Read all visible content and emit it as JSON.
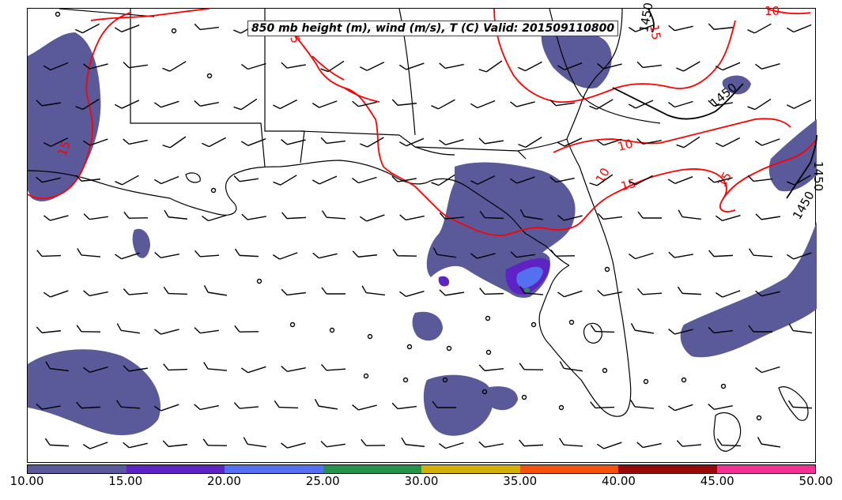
{
  "title": "850 mb height (m), wind (m/s), T (C) Valid: 201509110800",
  "colorbar": {
    "ticks": [
      "10.00",
      "15.00",
      "20.00",
      "25.00",
      "30.00",
      "35.00",
      "40.00",
      "45.00",
      "50.00"
    ],
    "colors": [
      "#5a5a9a",
      "#5d23c4",
      "#5470f0",
      "#24924a",
      "#d3b005",
      "#f1530c",
      "#960a0a",
      "#f23096"
    ]
  },
  "contours": {
    "temperature_color": "#ff0000",
    "height_color": "#000000",
    "temperature_labels": [
      "15",
      "10",
      "15",
      "15",
      "10",
      "15",
      "10",
      "15"
    ],
    "height_labels": [
      "1450",
      "1450",
      "1450",
      "1450"
    ]
  },
  "fill_color": "#5a5a9a",
  "wind_barb_color": "#000000",
  "coast_color": "#000000"
}
